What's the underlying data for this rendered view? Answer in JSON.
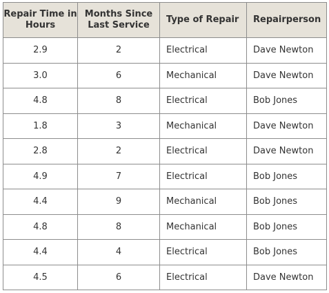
{
  "table": {
    "headers": [
      "Repair Time in Hours",
      "Months Since Last Service",
      "Type of Repair",
      "Repairperson"
    ],
    "rows": [
      [
        "2.9",
        "2",
        "Electrical",
        "Dave Newton"
      ],
      [
        "3.0",
        "6",
        "Mechanical",
        "Dave Newton"
      ],
      [
        "4.8",
        "8",
        "Electrical",
        "Bob Jones"
      ],
      [
        "1.8",
        "3",
        "Mechanical",
        "Dave Newton"
      ],
      [
        "2.8",
        "2",
        "Electrical",
        "Dave Newton"
      ],
      [
        "4.9",
        "7",
        "Electrical",
        "Bob Jones"
      ],
      [
        "4.4",
        "9",
        "Mechanical",
        "Bob Jones"
      ],
      [
        "4.8",
        "8",
        "Mechanical",
        "Bob Jones"
      ],
      [
        "4.4",
        "4",
        "Electrical",
        "Bob Jones"
      ],
      [
        "4.5",
        "6",
        "Electrical",
        "Dave Newton"
      ]
    ]
  }
}
